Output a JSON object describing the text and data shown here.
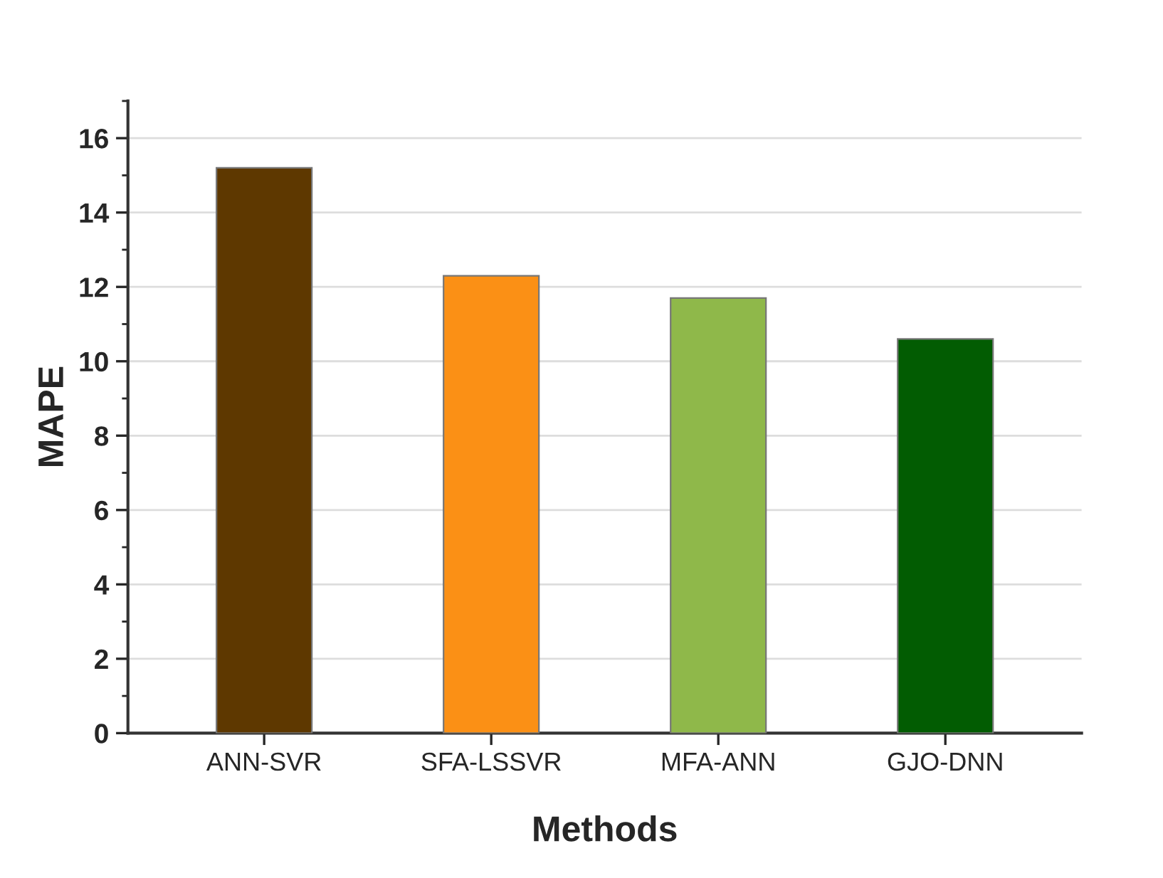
{
  "chart_data": {
    "type": "bar",
    "xlabel": "Methods",
    "ylabel": "MAPE",
    "categories": [
      "ANN-SVR",
      "SFA-LSSVR",
      "MFA-ANN",
      "GJO-DNN"
    ],
    "values": [
      15.2,
      12.3,
      11.7,
      10.6
    ],
    "colors": [
      "#5e3800",
      "#fb9015",
      "#8fb84a",
      "#025c02"
    ],
    "ylim": [
      0,
      17
    ],
    "yticks": [
      0,
      2,
      4,
      6,
      8,
      10,
      12,
      14,
      16
    ],
    "grid": "y",
    "legend": false
  }
}
